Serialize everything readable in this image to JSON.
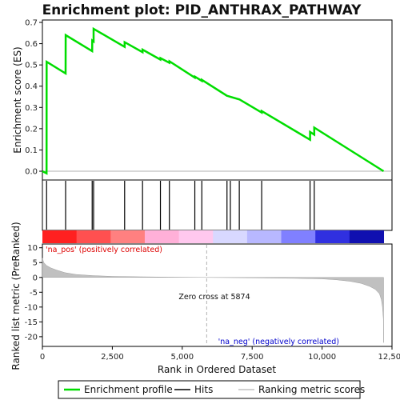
{
  "chart_data": [
    {
      "panel": "enrichment",
      "type": "line",
      "title": "Enrichment plot: PID_ANTHRAX_PATHWAY",
      "ylabel": "Enrichment score (ES)",
      "ylim": [
        -0.03,
        0.7
      ],
      "yticks": [
        0.0,
        0.1,
        0.2,
        0.3,
        0.4,
        0.5,
        0.6,
        0.7
      ],
      "ytick_labels": [
        "0.0",
        "0.1",
        "0.2",
        "0.3",
        "0.4",
        "0.5",
        "0.6",
        "0.7"
      ],
      "xlim": [
        0,
        12500
      ],
      "series": [
        {
          "name": "Enrichment profile",
          "color": "#00dd00",
          "x": [
            0,
            150,
            151,
            830,
            831,
            1780,
            1781,
            1830,
            1831,
            2940,
            2941,
            3580,
            3581,
            4220,
            4221,
            4540,
            4541,
            5450,
            5451,
            5700,
            5701,
            6600,
            6601,
            6720,
            6721,
            7040,
            7041,
            7840,
            7841,
            9570,
            9571,
            9720,
            9721,
            12200
          ],
          "y": [
            0.0,
            -0.01,
            0.515,
            0.46,
            0.64,
            0.565,
            0.615,
            0.61,
            0.67,
            0.585,
            0.607,
            0.56,
            0.572,
            0.525,
            0.532,
            0.51,
            0.517,
            0.44,
            0.445,
            0.425,
            0.43,
            0.355,
            0.355,
            0.35,
            0.35,
            0.338,
            0.338,
            0.276,
            0.283,
            0.148,
            0.185,
            0.172,
            0.205,
            0.0
          ]
        }
      ]
    },
    {
      "panel": "hits",
      "type": "scatter",
      "series": [
        {
          "name": "Hits",
          "color": "#000000",
          "x": [
            150,
            830,
            1780,
            1830,
            2940,
            3580,
            4220,
            4540,
            5450,
            5700,
            6600,
            6720,
            7040,
            7840,
            9570,
            9720
          ]
        }
      ]
    },
    {
      "panel": "ranking",
      "type": "area",
      "xlabel": "Rank in Ordered Dataset",
      "ylabel": "Ranked list metric (PreRanked)",
      "ylim": [
        -23,
        11
      ],
      "yticks": [
        10,
        5,
        0,
        -5,
        -10,
        -15,
        -20
      ],
      "ytick_labels": [
        "10",
        "5",
        "0",
        "-5",
        "-10",
        "-15",
        "-20"
      ],
      "xlim": [
        0,
        12500
      ],
      "xticks": [
        0,
        2500,
        5000,
        7500,
        10000,
        12500
      ],
      "xtick_labels": [
        "0",
        "2,500",
        "5,000",
        "7,500",
        "10,000",
        "12,500"
      ],
      "series": [
        {
          "name": "Ranking metric scores",
          "color": "#c0c0c0",
          "x": [
            0,
            50,
            150,
            300,
            500,
            800,
            1200,
            1800,
            2500,
            3500,
            4500,
            5874,
            7000,
            8000,
            9000,
            10000,
            10500,
            11000,
            11400,
            11700,
            11900,
            12050,
            12120,
            12160,
            12190,
            12200
          ],
          "y": [
            6.5,
            5.0,
            4.0,
            3.2,
            2.5,
            1.6,
            1.0,
            0.6,
            0.35,
            0.2,
            0.1,
            0.0,
            -0.1,
            -0.2,
            -0.3,
            -0.5,
            -0.8,
            -1.3,
            -2.0,
            -3.0,
            -4.0,
            -5.5,
            -7.5,
            -10.0,
            -14.0,
            -22.0
          ]
        }
      ],
      "zero_cross": 5874,
      "annotations": {
        "pos_label": "'na_pos' (positively correlated)",
        "neg_label": "'na_neg' (negatively correlated)",
        "zero_label": "Zero cross at 5874"
      },
      "colors": {
        "pos": "#dd0000",
        "neg": "#0000cc",
        "zero_line": "#b0b0b0"
      }
    }
  ],
  "heatmap_colors": [
    "#ff2020",
    "#ff5050",
    "#ff8080",
    "#ffb0d8",
    "#ffc8ee",
    "#d8d8ff",
    "#b8b8ff",
    "#8080ff",
    "#3030e0",
    "#1010b0"
  ],
  "legend": {
    "items": [
      {
        "label": "Enrichment profile",
        "color": "#00dd00"
      },
      {
        "label": "Hits",
        "color": "#000000"
      },
      {
        "label": "Ranking metric scores",
        "color": "#c0c0c0"
      }
    ]
  }
}
